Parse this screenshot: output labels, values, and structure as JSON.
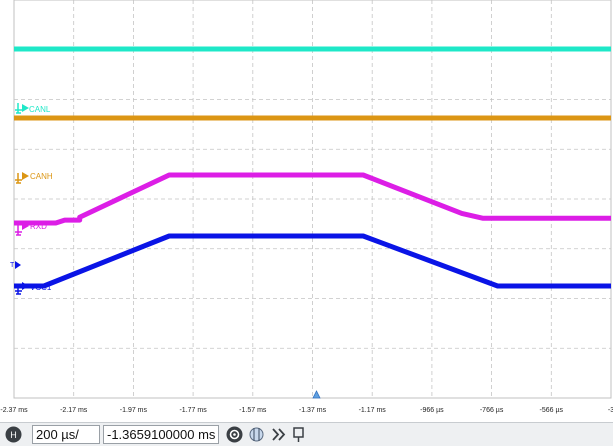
{
  "chart_data": {
    "type": "line",
    "x_unit": "ms",
    "x_range": [
      -2.37,
      -0.37
    ],
    "x_ticks": [
      "-2.37 ms",
      "-2.17 ms",
      "-1.97 ms",
      "-1.77 ms",
      "-1.57 ms",
      "-1.37 ms",
      "-1.17 ms",
      "-966 µs",
      "-766 µs",
      "-566 µs",
      "-3"
    ],
    "grid": true,
    "trigger_marker_x": -1.37,
    "series": [
      {
        "name": "",
        "color": "#1ee8c8",
        "points": [
          [
            -2.37,
            0
          ],
          [
            -0.37,
            0
          ]
        ]
      },
      {
        "name": "CANL",
        "color": "#dc9614",
        "points": [
          [
            -2.37,
            0
          ],
          [
            -0.37,
            0
          ]
        ]
      },
      {
        "name": "CANH",
        "color": "#dc1ee6",
        "points": [
          [
            -2.37,
            0
          ],
          [
            -2.23,
            0
          ],
          [
            -2.2,
            0.06
          ],
          [
            -2.17,
            0.06
          ],
          [
            -2.15,
            0.06
          ],
          [
            -2.15,
            0.12
          ],
          [
            -1.85,
            1
          ],
          [
            -1.2,
            1
          ],
          [
            -0.87,
            0.2
          ],
          [
            -0.8,
            0.1
          ],
          [
            -0.37,
            0.1
          ]
        ]
      },
      {
        "name": "RXD",
        "color": "#dc1ee6",
        "points": []
      },
      {
        "name": "VCC1",
        "color": "#0a14e6",
        "points": [
          [
            -2.37,
            0
          ],
          [
            -2.27,
            0
          ],
          [
            -1.85,
            1
          ],
          [
            -1.2,
            1
          ],
          [
            -0.75,
            0
          ],
          [
            -0.37,
            0
          ]
        ]
      }
    ]
  },
  "channel_labels": {
    "canl": "CANL",
    "canh": "CANH",
    "rxd": "RXD",
    "vcc1": "VCC1"
  },
  "status_bar": {
    "timebase_value": "200 µs/",
    "offset_value": "-1.3659100000 ms",
    "icons": [
      "h-icon",
      "zoom-icon",
      "cursor-icon",
      "forward-icon",
      "marker-icon"
    ]
  }
}
